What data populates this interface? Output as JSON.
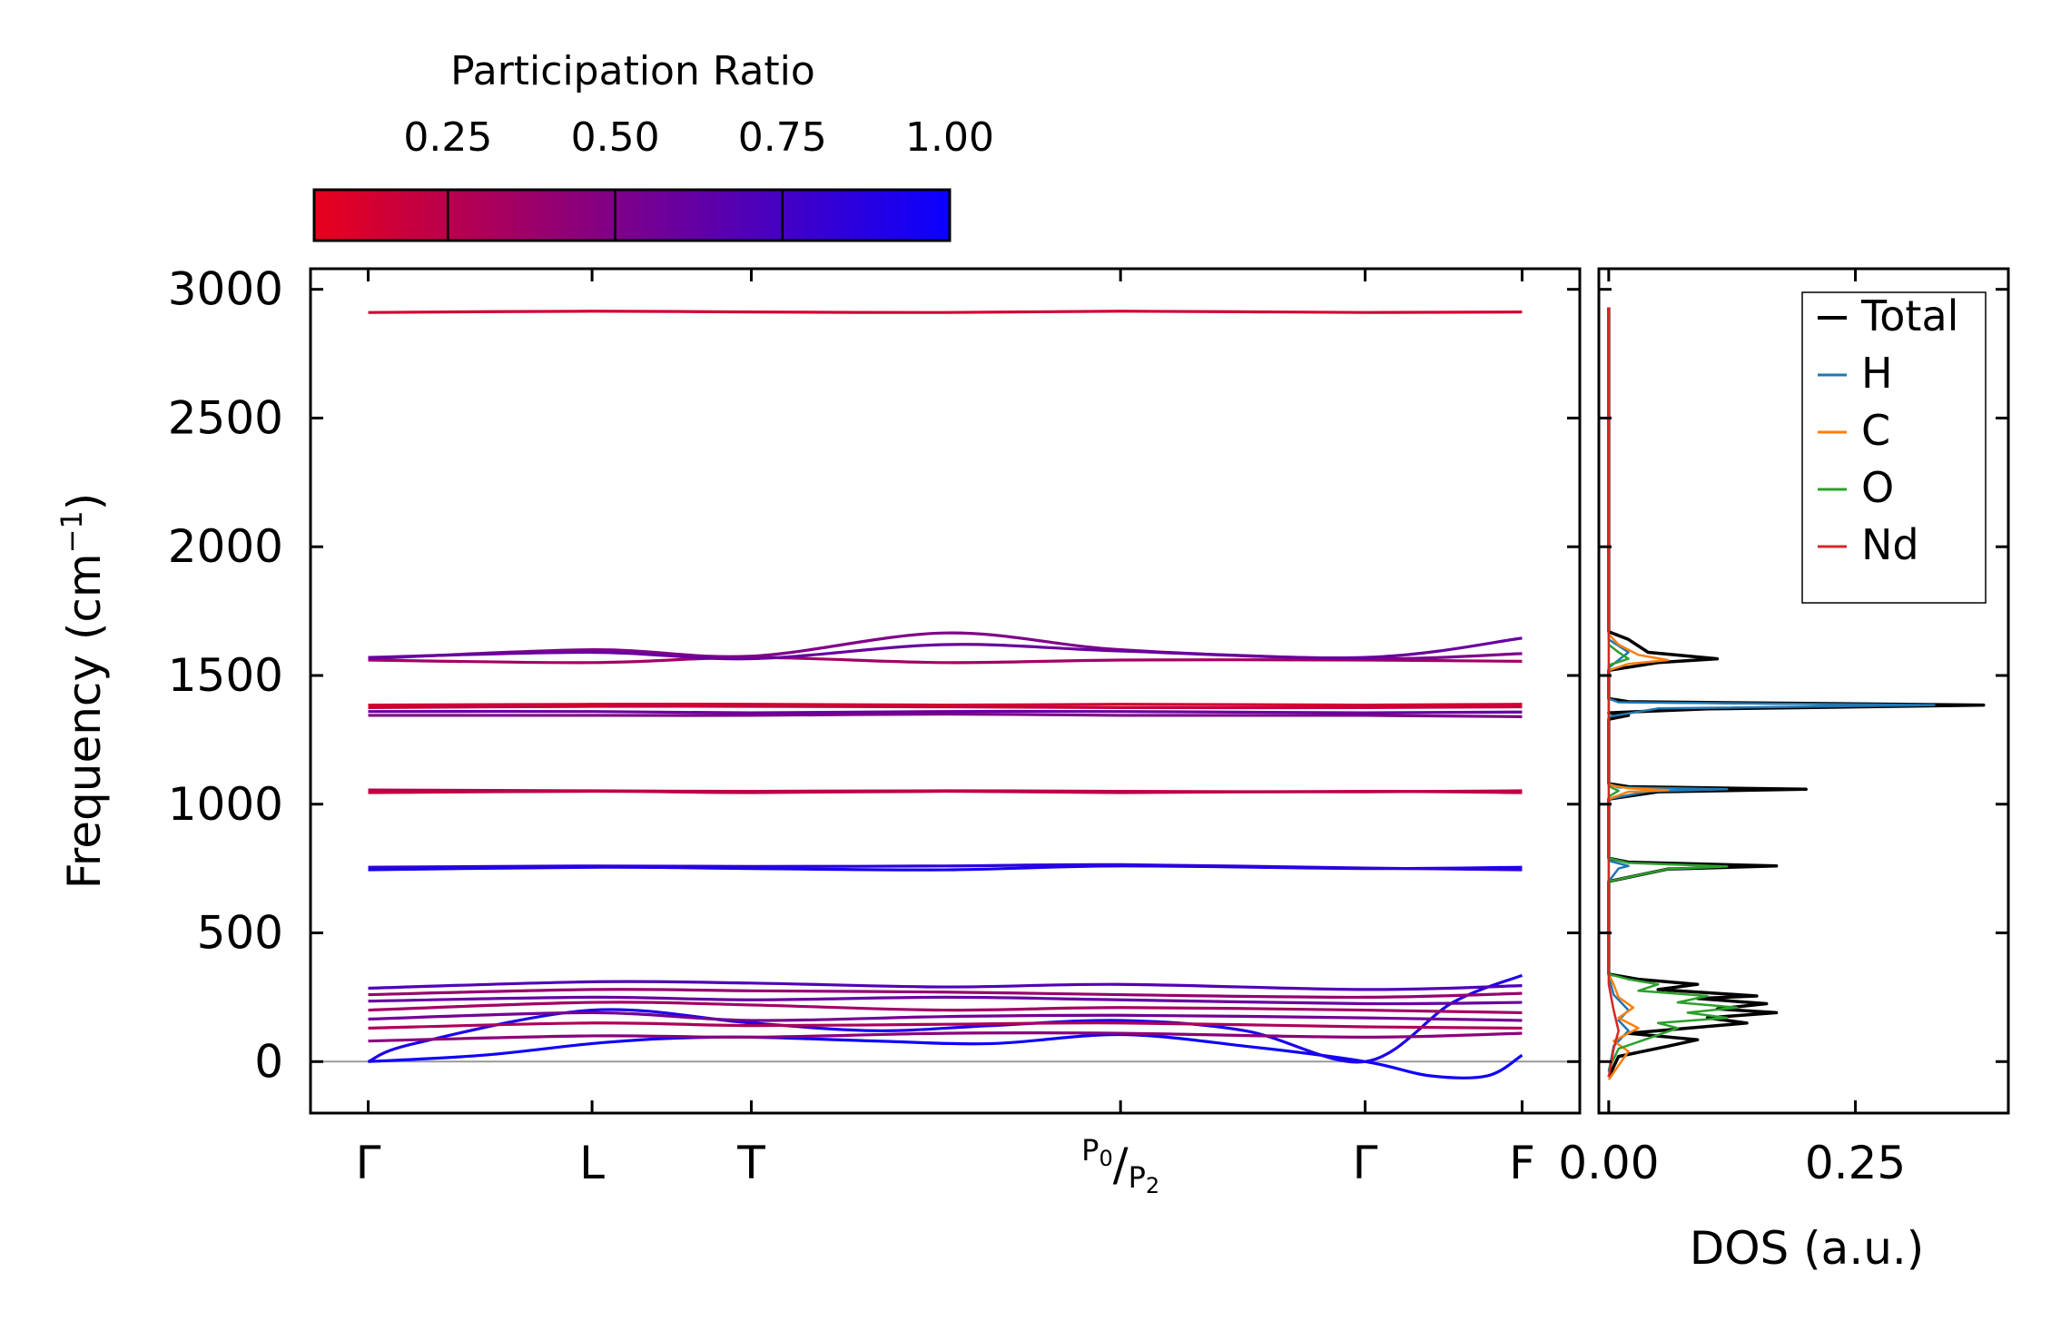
{
  "chart_data": [
    {
      "type": "line",
      "panel": "band-structure",
      "ylabel": "Frequency (cm",
      "ylabel_sup": "−1",
      "ylabel_end": ")",
      "ylim": [
        -200,
        3080
      ],
      "xlim": [
        -0.25,
        5.25
      ],
      "yticks": [
        0,
        500,
        1000,
        1500,
        2000,
        2500,
        3000
      ],
      "ytick_labels": [
        "0",
        "500",
        "1000",
        "1500",
        "2000",
        "2500",
        "3000"
      ],
      "kpoints": [
        {
          "pos": 0.0,
          "label": "Γ"
        },
        {
          "pos": 0.97,
          "label": "L"
        },
        {
          "pos": 1.66,
          "label": "T"
        },
        {
          "pos": 3.26,
          "label": "P₀/P₂"
        },
        {
          "pos": 4.32,
          "label": "Γ"
        },
        {
          "pos": 5.0,
          "label": "F"
        }
      ],
      "kpoint_labels_display": {
        "gamma": "Γ",
        "L": "L",
        "T": "T",
        "P0": "P",
        "P0_sub": "0",
        "P2": "P",
        "P2_sub": "2",
        "gamma2": "Γ",
        "F": "F"
      },
      "zero_line": 0,
      "colorscale": {
        "min_color": "#e8001c",
        "max_color": "#0a00ff",
        "min": 0.05,
        "max": 1.0
      },
      "series": [
        {
          "name": "band-1",
          "x": [
            0,
            0.5,
            0.97,
            1.3,
            1.66,
            2.2,
            2.7,
            3.26,
            3.8,
            4.32,
            4.6,
            4.85,
            5.0
          ],
          "y": [
            0,
            25,
            70,
            90,
            95,
            80,
            70,
            105,
            60,
            0,
            -55,
            -55,
            25
          ],
          "pr": 0.98
        },
        {
          "name": "band-2",
          "x": [
            0,
            0.2,
            0.97,
            1.66,
            2.2,
            2.7,
            3.26,
            3.8,
            4.32,
            4.7,
            5.0
          ],
          "y": [
            0,
            70,
            200,
            150,
            120,
            140,
            160,
            120,
            0,
            230,
            335
          ],
          "pr": 0.92
        },
        {
          "name": "band-3",
          "x": [
            0,
            0.97,
            1.66,
            2.5,
            3.26,
            4.32,
            5.0
          ],
          "y": [
            80,
            100,
            95,
            110,
            110,
            95,
            110
          ],
          "pr": 0.45
        },
        {
          "name": "band-4",
          "x": [
            0,
            0.97,
            1.66,
            2.5,
            3.26,
            4.32,
            5.0
          ],
          "y": [
            130,
            150,
            140,
            145,
            150,
            135,
            130
          ],
          "pr": 0.3
        },
        {
          "name": "band-5",
          "x": [
            0,
            0.97,
            1.66,
            2.5,
            3.26,
            4.32,
            5.0
          ],
          "y": [
            165,
            190,
            160,
            175,
            180,
            170,
            160
          ],
          "pr": 0.55
        },
        {
          "name": "band-6",
          "x": [
            0,
            0.97,
            1.66,
            2.5,
            3.26,
            4.32,
            5.0
          ],
          "y": [
            200,
            230,
            220,
            200,
            210,
            200,
            190
          ],
          "pr": 0.35
        },
        {
          "name": "band-7",
          "x": [
            0,
            0.97,
            1.66,
            2.5,
            3.26,
            4.32,
            5.0
          ],
          "y": [
            235,
            250,
            240,
            250,
            240,
            225,
            230
          ],
          "pr": 0.6
        },
        {
          "name": "band-8",
          "x": [
            0,
            0.97,
            1.66,
            2.5,
            3.26,
            4.32,
            5.0
          ],
          "y": [
            260,
            280,
            275,
            270,
            260,
            250,
            265
          ],
          "pr": 0.4
        },
        {
          "name": "band-9",
          "x": [
            0,
            0.97,
            1.66,
            2.5,
            3.26,
            4.32,
            5.0
          ],
          "y": [
            285,
            310,
            305,
            290,
            300,
            280,
            295
          ],
          "pr": 0.7
        },
        {
          "name": "band-10",
          "x": [
            0,
            0.97,
            1.66,
            2.5,
            3.26,
            4.32,
            5.0
          ],
          "y": [
            745,
            755,
            750,
            745,
            760,
            750,
            755
          ],
          "pr": 0.95
        },
        {
          "name": "band-11",
          "x": [
            0,
            0.97,
            1.66,
            2.5,
            3.26,
            4.32,
            5.0
          ],
          "y": [
            755,
            760,
            758,
            760,
            765,
            752,
            745
          ],
          "pr": 0.85
        },
        {
          "name": "band-12",
          "x": [
            0,
            0.97,
            1.66,
            2.5,
            3.26,
            4.32,
            5.0
          ],
          "y": [
            1045,
            1050,
            1045,
            1050,
            1045,
            1050,
            1045
          ],
          "pr": 0.2
        },
        {
          "name": "band-13",
          "x": [
            0,
            0.97,
            1.66,
            2.5,
            3.26,
            4.32,
            5.0
          ],
          "y": [
            1055,
            1052,
            1050,
            1052,
            1050,
            1048,
            1052
          ],
          "pr": 0.25
        },
        {
          "name": "band-14",
          "x": [
            0,
            0.97,
            1.66,
            2.5,
            3.26,
            4.32,
            5.0
          ],
          "y": [
            1345,
            1345,
            1345,
            1350,
            1345,
            1345,
            1340
          ],
          "pr": 0.5
        },
        {
          "name": "band-15",
          "x": [
            0,
            0.97,
            1.66,
            2.5,
            3.26,
            4.32,
            5.0
          ],
          "y": [
            1360,
            1360,
            1355,
            1360,
            1360,
            1355,
            1358
          ],
          "pr": 0.6
        },
        {
          "name": "band-16",
          "x": [
            0,
            0.97,
            1.66,
            2.5,
            3.26,
            4.32,
            5.0
          ],
          "y": [
            1375,
            1380,
            1380,
            1378,
            1375,
            1375,
            1378
          ],
          "pr": 0.2
        },
        {
          "name": "band-17",
          "x": [
            0,
            0.97,
            1.66,
            2.5,
            3.26,
            4.32,
            5.0
          ],
          "y": [
            1385,
            1388,
            1388,
            1385,
            1388,
            1385,
            1388
          ],
          "pr": 0.15
        },
        {
          "name": "band-18",
          "x": [
            0,
            0.97,
            1.66,
            2.5,
            3.26,
            4.32,
            5.0
          ],
          "y": [
            1560,
            1550,
            1570,
            1550,
            1560,
            1560,
            1555
          ],
          "pr": 0.35
        },
        {
          "name": "band-19",
          "x": [
            0,
            0.97,
            1.66,
            2.5,
            3.26,
            4.32,
            5.0
          ],
          "y": [
            1565,
            1600,
            1575,
            1665,
            1600,
            1565,
            1585
          ],
          "pr": 0.5
        },
        {
          "name": "band-20",
          "x": [
            0,
            0.97,
            1.66,
            2.5,
            3.26,
            4.32,
            5.0
          ],
          "y": [
            1570,
            1590,
            1565,
            1620,
            1595,
            1570,
            1645
          ],
          "pr": 0.6
        },
        {
          "name": "band-21",
          "x": [
            0,
            0.97,
            1.66,
            2.5,
            3.26,
            4.32,
            5.0
          ],
          "y": [
            2910,
            2915,
            2912,
            2910,
            2915,
            2910,
            2912
          ],
          "pr": 0.15
        }
      ]
    },
    {
      "type": "line",
      "panel": "dos",
      "xlabel": "DOS (a.u.)",
      "xlim": [
        -0.01,
        0.405
      ],
      "ylim": [
        -200,
        3080
      ],
      "xticks": [
        0.0,
        0.25
      ],
      "xtick_labels": [
        "0.00",
        "0.25"
      ],
      "legend_position": "top-right",
      "series": [
        {
          "name": "Total",
          "color": "#000000",
          "points": [
            [
              0,
              -60
            ],
            [
              0.01,
              20
            ],
            [
              0.06,
              60
            ],
            [
              0.09,
              85
            ],
            [
              0.02,
              110
            ],
            [
              0.14,
              150
            ],
            [
              0.1,
              170
            ],
            [
              0.17,
              190
            ],
            [
              0.11,
              205
            ],
            [
              0.16,
              225
            ],
            [
              0.09,
              245
            ],
            [
              0.15,
              255
            ],
            [
              0.05,
              280
            ],
            [
              0.09,
              300
            ],
            [
              0.03,
              320
            ],
            [
              0,
              340
            ],
            [
              0,
              700
            ],
            [
              0.06,
              748
            ],
            [
              0.17,
              760
            ],
            [
              0.02,
              775
            ],
            [
              0,
              790
            ],
            [
              0,
              1020
            ],
            [
              0.05,
              1048
            ],
            [
              0.2,
              1058
            ],
            [
              0.02,
              1068
            ],
            [
              0,
              1080
            ],
            [
              0,
              1330
            ],
            [
              0.02,
              1345
            ],
            [
              0,
              1355
            ],
            [
              0.1,
              1370
            ],
            [
              0.38,
              1385
            ],
            [
              0.02,
              1398
            ],
            [
              0,
              1410
            ],
            [
              0,
              1520
            ],
            [
              0.05,
              1550
            ],
            [
              0.11,
              1565
            ],
            [
              0.04,
              1590
            ],
            [
              0.02,
              1640
            ],
            [
              0,
              1670
            ],
            [
              0,
              2910
            ],
            [
              0,
              2930
            ]
          ]
        },
        {
          "name": "H",
          "color": "#1f77b4",
          "points": [
            [
              0,
              -40
            ],
            [
              0.005,
              60
            ],
            [
              0.02,
              120
            ],
            [
              0.01,
              160
            ],
            [
              0.02,
              200
            ],
            [
              0.005,
              260
            ],
            [
              0,
              330
            ],
            [
              0,
              700
            ],
            [
              0.01,
              750
            ],
            [
              0.02,
              760
            ],
            [
              0,
              780
            ],
            [
              0,
              1020
            ],
            [
              0.04,
              1050
            ],
            [
              0.12,
              1058
            ],
            [
              0.01,
              1065
            ],
            [
              0,
              1080
            ],
            [
              0,
              1340
            ],
            [
              0.05,
              1372
            ],
            [
              0.33,
              1385
            ],
            [
              0.01,
              1396
            ],
            [
              0,
              1410
            ],
            [
              0,
              1530
            ],
            [
              0.01,
              1560
            ],
            [
              0.02,
              1590
            ],
            [
              0,
              1640
            ],
            [
              0,
              2910
            ],
            [
              0,
              2925
            ]
          ]
        },
        {
          "name": "C",
          "color": "#ff7f0e",
          "points": [
            [
              0,
              -70
            ],
            [
              0.02,
              40
            ],
            [
              0.005,
              80
            ],
            [
              0.03,
              130
            ],
            [
              0.01,
              170
            ],
            [
              0.025,
              210
            ],
            [
              0.01,
              250
            ],
            [
              0.005,
              300
            ],
            [
              0,
              340
            ],
            [
              0,
              1020
            ],
            [
              0.02,
              1048
            ],
            [
              0.06,
              1055
            ],
            [
              0.02,
              1062
            ],
            [
              0,
              1075
            ],
            [
              0,
              1520
            ],
            [
              0.02,
              1545
            ],
            [
              0.06,
              1560
            ],
            [
              0.03,
              1580
            ],
            [
              0.01,
              1620
            ],
            [
              0,
              1660
            ],
            [
              0,
              2930
            ]
          ]
        },
        {
          "name": "O",
          "color": "#2ca02c",
          "points": [
            [
              0,
              -30
            ],
            [
              0.01,
              50
            ],
            [
              0.04,
              90
            ],
            [
              0.07,
              130
            ],
            [
              0.05,
              150
            ],
            [
              0.12,
              170
            ],
            [
              0.08,
              190
            ],
            [
              0.13,
              210
            ],
            [
              0.07,
              230
            ],
            [
              0.1,
              255
            ],
            [
              0.03,
              275
            ],
            [
              0.05,
              300
            ],
            [
              0.02,
              320
            ],
            [
              0,
              340
            ],
            [
              0,
              700
            ],
            [
              0.06,
              748
            ],
            [
              0.12,
              758
            ],
            [
              0.02,
              772
            ],
            [
              0,
              790
            ],
            [
              0,
              1030
            ],
            [
              0.01,
              1052
            ],
            [
              0,
              1070
            ],
            [
              0,
              1540
            ],
            [
              0.02,
              1565
            ],
            [
              0.01,
              1590
            ],
            [
              0,
              1620
            ]
          ]
        },
        {
          "name": "Nd",
          "color": "#d62728",
          "points": [
            [
              0,
              -60
            ],
            [
              0.005,
              50
            ],
            [
              0.01,
              120
            ],
            [
              0.005,
              200
            ],
            [
              0,
              300
            ],
            [
              0,
              2930
            ]
          ]
        }
      ]
    }
  ],
  "colorbar": {
    "title": "Participation Ratio",
    "min": 0.05,
    "max": 1.0,
    "ticks": [
      0.25,
      0.5,
      0.75,
      1.0
    ],
    "tick_labels": [
      "0.25",
      "0.50",
      "0.75",
      "1.00"
    ],
    "color_low": "#e8001c",
    "color_high": "#0a00ff"
  },
  "legend": [
    "Total",
    "H",
    "C",
    "O",
    "Nd"
  ],
  "colors": {
    "axis": "#000000",
    "zero_line": "#999999"
  }
}
